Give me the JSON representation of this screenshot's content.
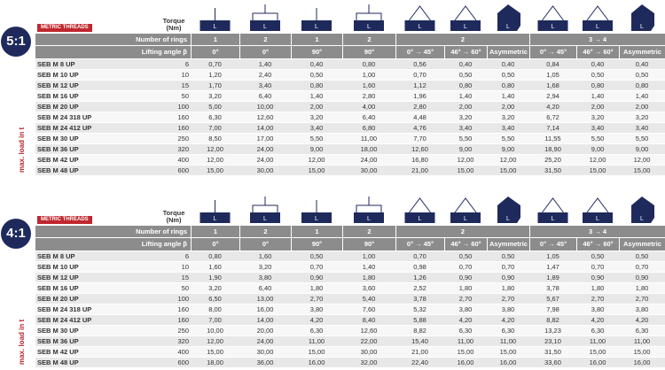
{
  "header": {
    "metric_threads": "METRIC THREADS",
    "torque": "Torque (Nm)",
    "rings_label": "Number of rings",
    "angle_label": "Lifting angle β",
    "rings": [
      "1",
      "2",
      "1",
      "2",
      "2",
      "3 → 4"
    ],
    "angles": [
      "0°",
      "0°",
      "90°",
      "90°",
      "0° → 45°",
      "46° → 60°",
      "Asymmetric",
      "0° → 45°",
      "46° → 60°",
      "Asymmetric"
    ]
  },
  "icon_label": "L",
  "side_label": "max. load in t",
  "tables": [
    {
      "ratio": "5:1",
      "rows": [
        [
          "SEB M 8 UP",
          "6",
          "0,70",
          "1,40",
          "0,40",
          "0,80",
          "0,56",
          "0,40",
          "0,40",
          "0,84",
          "0,40",
          "0,40"
        ],
        [
          "SEB M 10 UP",
          "10",
          "1,20",
          "2,40",
          "0,50",
          "1,00",
          "0,70",
          "0,50",
          "0,50",
          "1,05",
          "0,50",
          "0,50"
        ],
        [
          "SEB M 12 UP",
          "15",
          "1,70",
          "3,40",
          "0,80",
          "1,60",
          "1,12",
          "0,80",
          "0,80",
          "1,68",
          "0,80",
          "0,80"
        ],
        [
          "SEB M 16 UP",
          "50",
          "3,20",
          "6,40",
          "1,40",
          "2,80",
          "1,96",
          "1,40",
          "1,40",
          "2,94",
          "1,40",
          "1,40"
        ],
        [
          "SEB M 20 UP",
          "100",
          "5,00",
          "10,00",
          "2,00",
          "4,00",
          "2,80",
          "2,00",
          "2,00",
          "4,20",
          "2,00",
          "2,00"
        ],
        [
          "SEB M 24 318 UP",
          "160",
          "6,30",
          "12,60",
          "3,20",
          "6,40",
          "4,48",
          "3,20",
          "3,20",
          "6,72",
          "3,20",
          "3,20"
        ],
        [
          "SEB M 24 412 UP",
          "160",
          "7,00",
          "14,00",
          "3,40",
          "6,80",
          "4,76",
          "3,40",
          "3,40",
          "7,14",
          "3,40",
          "3,40"
        ],
        [
          "SEB M 30 UP",
          "250",
          "8,50",
          "17,00",
          "5,50",
          "11,00",
          "7,70",
          "5,50",
          "5,50",
          "11,55",
          "5,50",
          "5,50"
        ],
        [
          "SEB M 36 UP",
          "320",
          "12,00",
          "24,00",
          "9,00",
          "18,00",
          "12,60",
          "9,00",
          "9,00",
          "18,90",
          "9,00",
          "9,00"
        ],
        [
          "SEB M 42 UP",
          "400",
          "12,00",
          "24,00",
          "12,00",
          "24,00",
          "16,80",
          "12,00",
          "12,00",
          "25,20",
          "12,00",
          "12,00"
        ],
        [
          "SEB M 48 UP",
          "600",
          "15,00",
          "30,00",
          "15,00",
          "30,00",
          "21,00",
          "15,00",
          "15,00",
          "31,50",
          "15,00",
          "15,00"
        ]
      ]
    },
    {
      "ratio": "4:1",
      "rows": [
        [
          "SEB M 8 UP",
          "6",
          "0,80",
          "1,60",
          "0,50",
          "1,00",
          "0,70",
          "0,50",
          "0,50",
          "1,05",
          "0,50",
          "0,50"
        ],
        [
          "SEB M 10 UP",
          "10",
          "1,60",
          "3,20",
          "0,70",
          "1,40",
          "0,98",
          "0,70",
          "0,70",
          "1,47",
          "0,70",
          "0,70"
        ],
        [
          "SEB M 12 UP",
          "15",
          "1,90",
          "3,80",
          "0,90",
          "1,80",
          "1,26",
          "0,90",
          "0,90",
          "1,89",
          "0,90",
          "0,90"
        ],
        [
          "SEB M 16 UP",
          "50",
          "3,20",
          "6,40",
          "1,80",
          "3,60",
          "2,52",
          "1,80",
          "1,80",
          "3,78",
          "1,80",
          "1,80"
        ],
        [
          "SEB M 20 UP",
          "100",
          "6,50",
          "13,00",
          "2,70",
          "5,40",
          "3,78",
          "2,70",
          "2,70",
          "5,67",
          "2,70",
          "2,70"
        ],
        [
          "SEB M 24 318 UP",
          "160",
          "8,00",
          "16,00",
          "3,80",
          "7,60",
          "5,32",
          "3,80",
          "3,80",
          "7,98",
          "3,80",
          "3,80"
        ],
        [
          "SEB M 24 412 UP",
          "160",
          "7,00",
          "14,00",
          "4,20",
          "8,40",
          "5,88",
          "4,20",
          "4,20",
          "8,82",
          "4,20",
          "4,20"
        ],
        [
          "SEB M 30 UP",
          "250",
          "10,00",
          "20,00",
          "6,30",
          "12,60",
          "8,82",
          "6,30",
          "6,30",
          "13,23",
          "6,30",
          "6,30"
        ],
        [
          "SEB M 36 UP",
          "320",
          "12,00",
          "24,00",
          "11,00",
          "22,00",
          "15,40",
          "11,00",
          "11,00",
          "23,10",
          "11,00",
          "11,00"
        ],
        [
          "SEB M 42 UP",
          "400",
          "15,00",
          "30,00",
          "15,00",
          "30,00",
          "21,00",
          "15,00",
          "15,00",
          "31,50",
          "15,00",
          "15,00"
        ],
        [
          "SEB M 48 UP",
          "600",
          "18,00",
          "36,00",
          "16,00",
          "32,00",
          "22,40",
          "16,00",
          "16,00",
          "33,60",
          "16,00",
          "16,00"
        ]
      ]
    }
  ]
}
